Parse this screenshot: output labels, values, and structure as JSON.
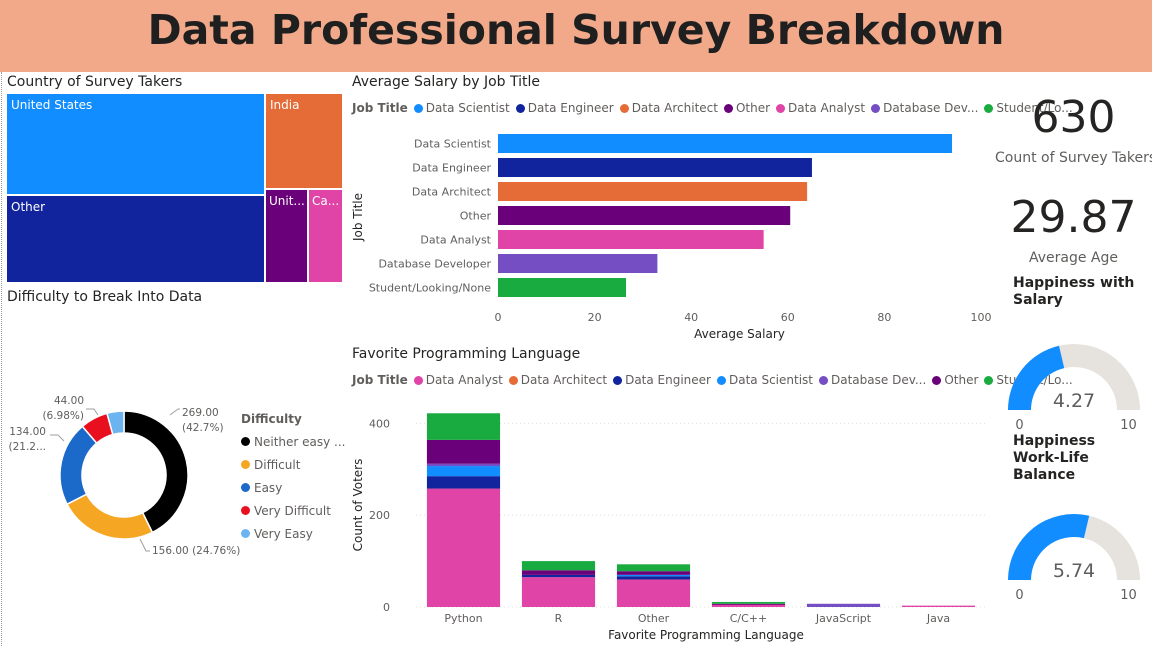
{
  "page": {
    "title": "Data Professional Survey Breakdown"
  },
  "treemap": {
    "title": "Country of Survey Takers",
    "items": [
      {
        "label": "United States",
        "color": "#118dff"
      },
      {
        "label": "India",
        "color": "#e66c37"
      },
      {
        "label": "Other",
        "color": "#12239e"
      },
      {
        "label": "Unit...",
        "color": "#6b007b"
      },
      {
        "label": "Ca...",
        "color": "#e044a7"
      }
    ]
  },
  "bar_legend": {
    "title": "Job Title",
    "items": [
      {
        "label": "Data Scientist",
        "color": "#118dff"
      },
      {
        "label": "Data Engineer",
        "color": "#12239e"
      },
      {
        "label": "Data Architect",
        "color": "#e66c37"
      },
      {
        "label": "Other",
        "color": "#6b007b"
      },
      {
        "label": "Data Analyst",
        "color": "#e044a7"
      },
      {
        "label": "Database Dev...",
        "color": "#744ec2"
      },
      {
        "label": "Student/Lo...",
        "color": "#1aab40"
      }
    ]
  },
  "column_legend": {
    "title": "Job Title",
    "items": [
      {
        "label": "Data Analyst",
        "color": "#e044a7"
      },
      {
        "label": "Data Architect",
        "color": "#e66c37"
      },
      {
        "label": "Data Engineer",
        "color": "#12239e"
      },
      {
        "label": "Data Scientist",
        "color": "#118dff"
      },
      {
        "label": "Database Dev...",
        "color": "#744ec2"
      },
      {
        "label": "Other",
        "color": "#6b007b"
      },
      {
        "label": "Student/Lo...",
        "color": "#1aab40"
      }
    ]
  },
  "kpis": {
    "count": {
      "value": "630",
      "label": "Count of Survey Takers"
    },
    "age": {
      "value": "29.87",
      "label": "Average Age"
    }
  },
  "gauges": [
    {
      "title_line1": "Happiness with",
      "title_line2": "Salary",
      "value": 4.27,
      "value_text": "4.27",
      "min": "0",
      "max": "10",
      "fill": "#118dff",
      "track": "#e6e2dd"
    },
    {
      "title_line1": "Happiness",
      "title_line2": "Work-Life Balance",
      "value": 5.74,
      "value_text": "5.74",
      "min": "0",
      "max": "10",
      "fill": "#118dff",
      "track": "#e6e2dd"
    }
  ],
  "donut_legend": {
    "title": "Difficulty",
    "items": [
      {
        "label": "Neither easy ...",
        "color": "#000000"
      },
      {
        "label": "Difficult",
        "color": "#f5a623"
      },
      {
        "label": "Easy",
        "color": "#1b6ac9"
      },
      {
        "label": "Very Difficult",
        "color": "#e8101f"
      },
      {
        "label": "Very Easy",
        "color": "#6cb4f0"
      }
    ]
  },
  "chart_data": [
    {
      "type": "treemap",
      "title": "Country of Survey Takers",
      "categories": [
        "United States",
        "Other",
        "India",
        "Unit...",
        "Ca..."
      ],
      "values": [
        262,
        236,
        74,
        32,
        26
      ]
    },
    {
      "type": "bar",
      "orientation": "horizontal",
      "title": "Average Salary by Job Title",
      "categories": [
        "Data Scientist",
        "Data Engineer",
        "Data Architect",
        "Other",
        "Data Analyst",
        "Database Developer",
        "Student/Looking/None"
      ],
      "values": [
        94,
        65,
        64,
        60.5,
        55,
        33,
        26.5
      ],
      "colors": [
        "#118dff",
        "#12239e",
        "#e66c37",
        "#6b007b",
        "#e044a7",
        "#744ec2",
        "#1aab40"
      ],
      "xlabel": "Average Salary",
      "ylabel": "Job Title",
      "xlim": [
        0,
        100
      ],
      "xticks": [
        "0",
        "20",
        "40",
        "60",
        "80",
        "100"
      ]
    },
    {
      "type": "bar",
      "stacked": true,
      "title": "Favorite Programming Language",
      "categories": [
        "Python",
        "R",
        "Other",
        "C/C++",
        "JavaScript",
        "Java"
      ],
      "series": [
        {
          "name": "Data Analyst",
          "color": "#e044a7",
          "values": [
            258,
            65,
            60,
            6,
            0,
            3
          ]
        },
        {
          "name": "Data Engineer",
          "color": "#12239e",
          "values": [
            27,
            5,
            7,
            0,
            0,
            0
          ]
        },
        {
          "name": "Data Scientist",
          "color": "#118dff",
          "values": [
            22,
            0,
            3,
            0,
            0,
            0
          ]
        },
        {
          "name": "Database Dev...",
          "color": "#744ec2",
          "values": [
            5,
            0,
            0,
            0,
            7,
            0
          ]
        },
        {
          "name": "Other",
          "color": "#6b007b",
          "values": [
            52,
            10,
            8,
            1,
            0,
            0
          ]
        },
        {
          "name": "Student/Lo...",
          "color": "#1aab40",
          "values": [
            58,
            20,
            15,
            4,
            0,
            0
          ]
        }
      ],
      "xlabel": "Favorite Programming Language",
      "ylabel": "Count of Voters",
      "ylim": [
        0,
        440
      ],
      "yticks": [
        "0",
        "200",
        "400"
      ]
    },
    {
      "type": "pie",
      "donut": true,
      "title": "Difficulty to Break Into Data",
      "categories": [
        "Neither easy nor difficult",
        "Difficult",
        "Easy",
        "Very Difficult",
        "Very Easy"
      ],
      "values": [
        269,
        156,
        134,
        44,
        27
      ],
      "colors": [
        "#000000",
        "#f5a623",
        "#1b6ac9",
        "#e8101f",
        "#6cb4f0"
      ],
      "labels": [
        "269.00\n(42.7%)",
        "156.00 (24.76%)",
        "134.00\n(21.2...",
        "44.00\n(6.98%)",
        ""
      ]
    }
  ]
}
